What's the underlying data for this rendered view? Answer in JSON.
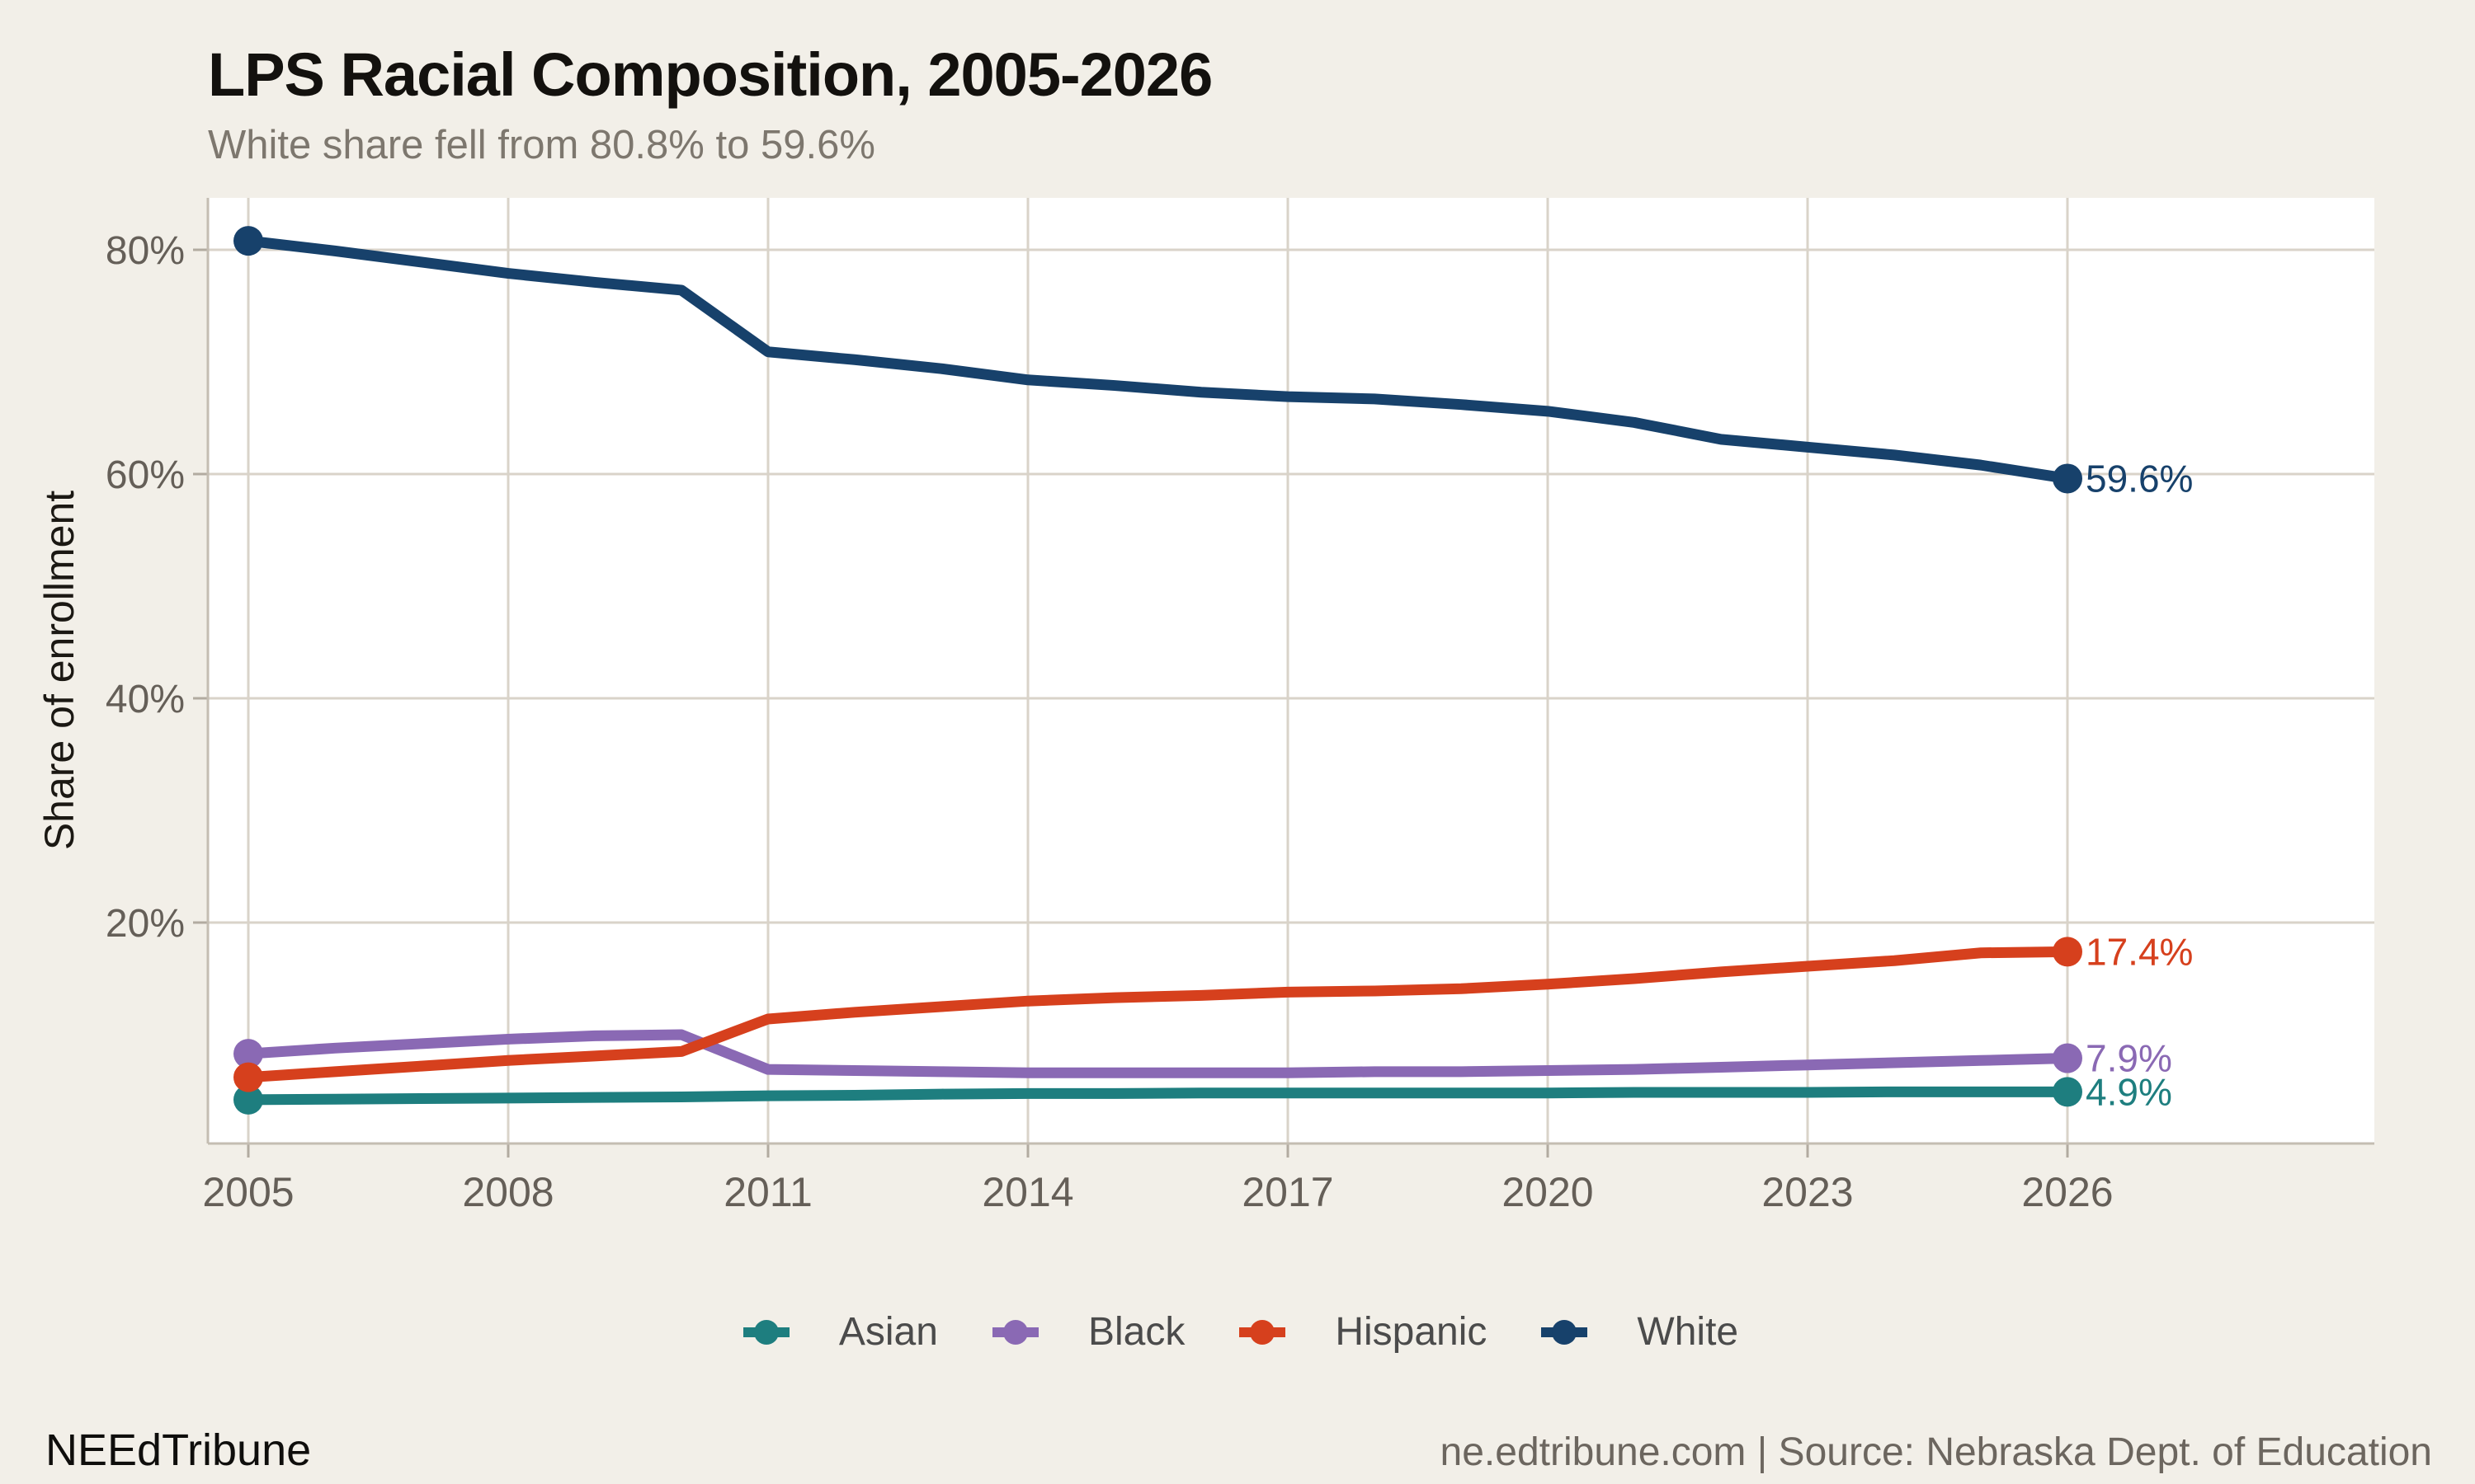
{
  "header": {
    "title": "LPS Racial Composition, 2005-2026",
    "subtitle": "White share fell from 80.8% to 59.6%"
  },
  "footer": {
    "brand": "NEEdTribune",
    "source": "ne.edtribune.com | Source: Nebraska Dept. of Education"
  },
  "palette": {
    "background": "#f2efe8",
    "panel": "#ffffff",
    "gridline": "#d9d3c9",
    "axis_line": "#c4bdb2",
    "tick_mark": "#b2aba0",
    "tick_label": "#655f58",
    "asian": "#1e7e7f",
    "black": "#8a69b4",
    "hispanic": "#d6401d",
    "white": "#17416b"
  },
  "chart_data": {
    "type": "line",
    "title": "LPS Racial Composition, 2005-2026",
    "subtitle": "White share fell from 80.8% to 59.6%",
    "xlabel": "",
    "ylabel": "Share of enrollment",
    "grid": true,
    "legend_position": "bottom",
    "ylim": [
      0,
      85
    ],
    "x": [
      2005,
      2006,
      2007,
      2008,
      2009,
      2010,
      2011,
      2012,
      2013,
      2014,
      2015,
      2016,
      2017,
      2018,
      2019,
      2020,
      2021,
      2022,
      2023,
      2024,
      2025,
      2026
    ],
    "x_ticks": [
      {
        "value": 2005,
        "label": "2005"
      },
      {
        "value": 2008,
        "label": "2008"
      },
      {
        "value": 2011,
        "label": "2011"
      },
      {
        "value": 2014,
        "label": "2014"
      },
      {
        "value": 2017,
        "label": "2017"
      },
      {
        "value": 2020,
        "label": "2020"
      },
      {
        "value": 2023,
        "label": "2023"
      },
      {
        "value": 2026,
        "label": "2026"
      }
    ],
    "y_ticks": [
      {
        "value": 20,
        "label": "20%"
      },
      {
        "value": 40,
        "label": "40%"
      },
      {
        "value": 60,
        "label": "60%"
      },
      {
        "value": 80,
        "label": "80%"
      }
    ],
    "series": [
      {
        "name": "Asian",
        "color": "#1e7e7f",
        "end_label": "4.9%",
        "values": [
          4.2,
          4.25,
          4.3,
          4.35,
          4.4,
          4.45,
          4.55,
          4.6,
          4.7,
          4.75,
          4.75,
          4.8,
          4.8,
          4.8,
          4.8,
          4.8,
          4.85,
          4.85,
          4.85,
          4.9,
          4.9,
          4.9
        ]
      },
      {
        "name": "Black",
        "color": "#8a69b4",
        "end_label": "7.9%",
        "values": [
          8.3,
          8.8,
          9.2,
          9.6,
          9.9,
          10.0,
          6.9,
          6.8,
          6.7,
          6.6,
          6.6,
          6.6,
          6.6,
          6.7,
          6.7,
          6.8,
          6.9,
          7.1,
          7.3,
          7.5,
          7.7,
          7.9
        ]
      },
      {
        "name": "Hispanic",
        "color": "#d6401d",
        "end_label": "17.4%",
        "values": [
          6.2,
          6.7,
          7.2,
          7.7,
          8.1,
          8.5,
          11.4,
          12.0,
          12.5,
          13.0,
          13.3,
          13.5,
          13.8,
          13.9,
          14.1,
          14.5,
          15.0,
          15.6,
          16.1,
          16.6,
          17.3,
          17.4
        ]
      },
      {
        "name": "White",
        "color": "#17416b",
        "end_label": "59.6%",
        "values": [
          80.8,
          79.9,
          78.9,
          77.9,
          77.1,
          76.4,
          70.9,
          70.2,
          69.4,
          68.4,
          67.9,
          67.3,
          66.9,
          66.7,
          66.2,
          65.6,
          64.6,
          63.1,
          62.4,
          61.7,
          60.8,
          59.6
        ]
      }
    ]
  }
}
